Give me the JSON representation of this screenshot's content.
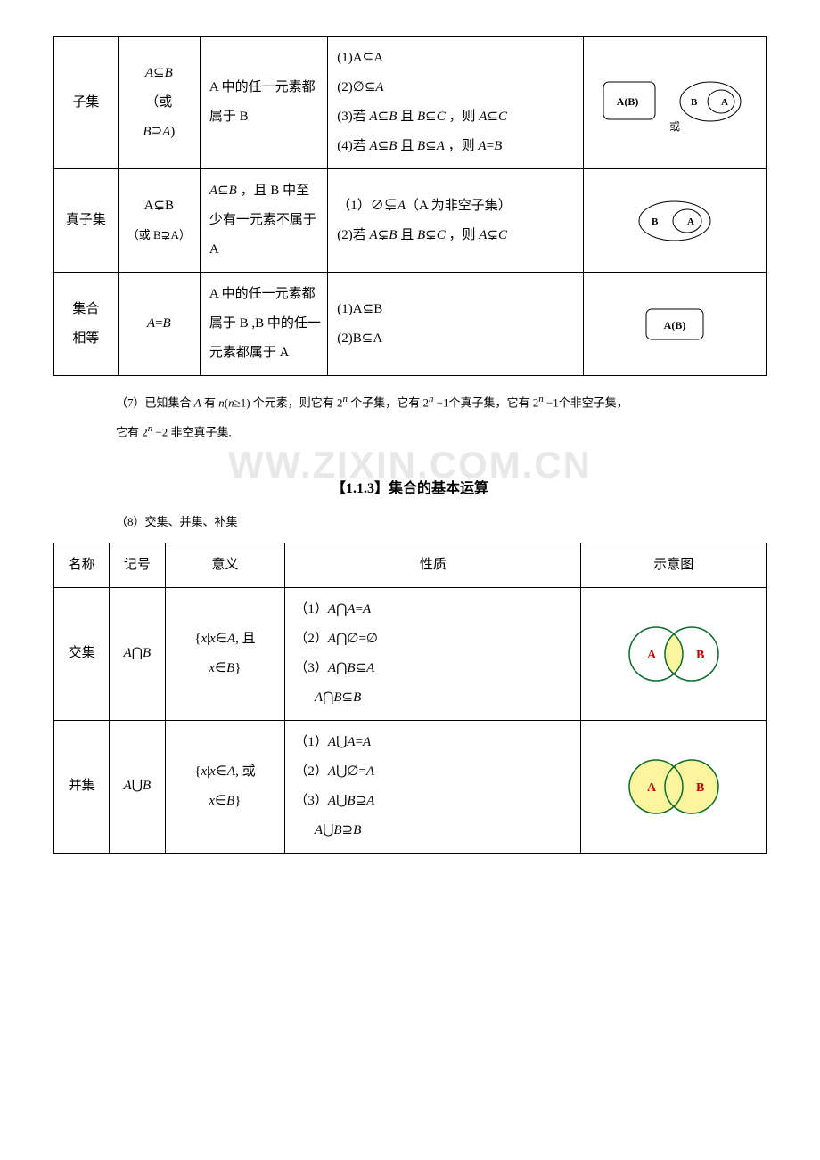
{
  "table1": {
    "rows": [
      {
        "name": "子集",
        "notation_html": "<span class='math'>A</span>⊆<span class='math'>B</span><br>（或<br><span class='math'>B</span>⊇<span class='math'>A</span>)",
        "meaning": "A 中的任一元素都属于 B",
        "props_html": "(1)A⊆A<br>(2)∅⊆<span class='math'>A</span><br>(3)若 <span class='math'>A</span>⊆<span class='math'>B</span> 且 <span class='math'>B</span>⊆<span class='math'>C</span> ，则 <span class='math'>A</span>⊆<span class='math'>C</span><br>(4)若 <span class='math'>A</span>⊆<span class='math'>B</span> 且 <span class='math'>B</span>⊆<span class='math'>A</span> ，则 <span class='math'>A</span>=<span class='math'>B</span>",
        "diagram": "subset"
      },
      {
        "name": "真子集",
        "notation_html": "A⊊B<br><span class='small'>（或 B⊋A）</span>",
        "meaning_html": "<span class='math'>A</span>⊆<span class='math'>B</span> ，且 B 中至少有一元素不属于 A",
        "props_html": "（1）∅⊊<span class='math'>A</span>（A 为非空子集）<br>(2)若 <span class='math'>A</span>⊊<span class='math'>B</span> 且 <span class='math'>B</span>⊊<span class='math'>C</span> ，则 <span class='math'>A</span>⊊<span class='math'>C</span>",
        "diagram": "proper"
      },
      {
        "name": "集合相等",
        "notation_html": "<span class='math'>A</span>=<span class='math'>B</span>",
        "meaning": "A 中的任一元素都属于 B ,B 中的任一元素都属于 A",
        "props_html": "(1)A⊆B<br>(2)B⊆A",
        "diagram": "equal"
      }
    ]
  },
  "paragraph7_html": "（7）已知集合 <span class='math'>A</span> 有 <span class='math'>n</span>(<span class='math'>n</span>≥1) 个元素，则它有 2<sup><span class='math'>n</span></sup> 个子集，它有 2<sup><span class='math'>n</span></sup> −1个真子集，它有 2<sup><span class='math'>n</span></sup> −1个非空子集，",
  "paragraph7b_html": "它有 2<sup><span class='math'>n</span></sup> −2 非空真子集.",
  "watermark_text": "WW.ZIXIN.COM.CN",
  "section_title": "【1.1.3】集合的基本运算",
  "paragraph8": "（8）交集、并集、补集",
  "table2": {
    "header": [
      "名称",
      "记号",
      "意义",
      "性质",
      "示意图"
    ],
    "rows": [
      {
        "name": "交集",
        "notation_html": "<span class='math'>A</span>⋂<span class='math'>B</span>",
        "meaning_html": "{<span class='math'>x</span>|<span class='math'>x</span>∈<span class='math'>A</span>, 且<br><span class='math'>x</span>∈<span class='math'>B</span>}",
        "props_html": "（1）<span class='math'>A</span>⋂<span class='math'>A</span>=<span class='math'>A</span><br>（2）<span class='math'>A</span>⋂∅=∅<br>（3）<span class='math'>A</span>⋂<span class='math'>B</span>⊆<span class='math'>A</span><br>&nbsp;&nbsp;&nbsp;&nbsp;&nbsp;&nbsp;<span class='math'>A</span>⋂<span class='math'>B</span>⊆<span class='math'>B</span>",
        "diagram": "intersection"
      },
      {
        "name": "并集",
        "notation_html": "<span class='math'>A</span>⋃<span class='math'>B</span>",
        "meaning_html": "{<span class='math'>x</span>|<span class='math'>x</span>∈<span class='math'>A</span>, 或<br><span class='math'>x</span>∈<span class='math'>B</span>}",
        "props_html": "（1）<span class='math'>A</span>⋃<span class='math'>A</span>=<span class='math'>A</span><br>（2）<span class='math'>A</span>⋃∅=<span class='math'>A</span><br>（3）<span class='math'>A</span>⋃<span class='math'>B</span>⊇<span class='math'>A</span><br>&nbsp;&nbsp;&nbsp;&nbsp;&nbsp;&nbsp;<span class='math'>A</span>⋃<span class='math'>B</span>⊇<span class='math'>B</span>",
        "diagram": "union"
      }
    ]
  },
  "colors": {
    "venn_fill": "#fdf4a0",
    "venn_stroke": "#0b6b2a",
    "venn_label": "#c00000",
    "box_stroke": "#000000"
  }
}
